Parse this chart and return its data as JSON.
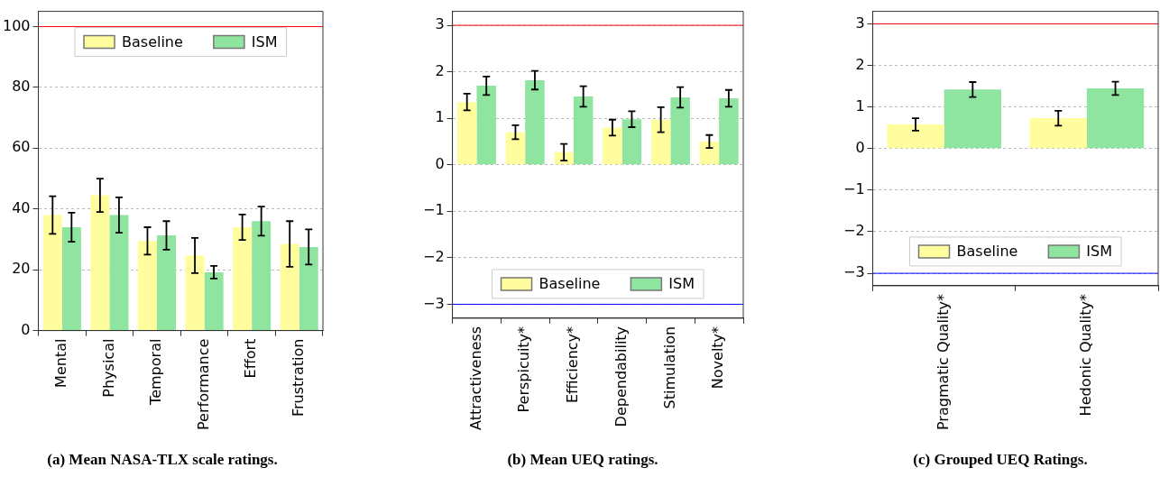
{
  "chart_data": [
    {
      "type": "bar",
      "title": "(a) Mean NASA-TLX scale ratings.",
      "categories": [
        "Mental",
        "Physical",
        "Temporal",
        "Performance",
        "Effort",
        "Frustration"
      ],
      "series": [
        {
          "name": "Baseline",
          "color": "#fffd9e",
          "values": [
            38,
            44.5,
            29.5,
            24.7,
            34,
            28.5
          ],
          "errors": [
            6.2,
            5.5,
            4.5,
            5.8,
            4.2,
            7.5
          ]
        },
        {
          "name": "ISM",
          "color": "#8fe4a0",
          "values": [
            34,
            38,
            31.3,
            19.2,
            36,
            27.5
          ],
          "errors": [
            4.8,
            5.8,
            4.7,
            2.1,
            4.8,
            5.8
          ]
        }
      ],
      "ylim": [
        0,
        105
      ],
      "yticks": [
        0,
        20,
        40,
        60,
        80,
        100
      ],
      "grid": "y",
      "legend": "top",
      "ref_lines": [
        {
          "axis": "y",
          "value": 100,
          "color": "#ff0000"
        }
      ]
    },
    {
      "type": "bar",
      "title": "(b) Mean UEQ ratings.",
      "categories": [
        "Attractiveness",
        "Perspicuity*",
        "Efficiency*",
        "Dependability",
        "Stimulation",
        "Novelty*"
      ],
      "series": [
        {
          "name": "Baseline",
          "color": "#fffd9e",
          "values": [
            1.35,
            0.7,
            0.27,
            0.8,
            0.97,
            0.5
          ],
          "errors": [
            0.18,
            0.15,
            0.18,
            0.17,
            0.27,
            0.14
          ]
        },
        {
          "name": "ISM",
          "color": "#8fe4a0",
          "values": [
            1.7,
            1.82,
            1.47,
            0.98,
            1.45,
            1.43
          ],
          "errors": [
            0.2,
            0.2,
            0.22,
            0.17,
            0.22,
            0.18
          ]
        }
      ],
      "ylim": [
        -3.3,
        3.3
      ],
      "yticks": [
        {
          "value": -3,
          "label": "−3"
        },
        {
          "value": -2,
          "label": "−2"
        },
        {
          "value": -1,
          "label": "−1"
        },
        0,
        1,
        2,
        3
      ],
      "grid": "y",
      "legend": "bottom",
      "ref_lines": [
        {
          "axis": "y",
          "value": 3,
          "color": "#ff0000"
        },
        {
          "axis": "y",
          "value": -3,
          "color": "#0000ff"
        }
      ]
    },
    {
      "type": "bar",
      "title": "(c) Grouped UEQ Ratings.",
      "categories": [
        "Pragmatic Quality*",
        "Hedonic Quality*"
      ],
      "series": [
        {
          "name": "Baseline",
          "color": "#fffd9e",
          "values": [
            0.58,
            0.73
          ],
          "errors": [
            0.15,
            0.18
          ]
        },
        {
          "name": "ISM",
          "color": "#8fe4a0",
          "values": [
            1.42,
            1.45
          ],
          "errors": [
            0.18,
            0.16
          ]
        }
      ],
      "ylim": [
        -3.3,
        3.3
      ],
      "yticks": [
        {
          "value": -3,
          "label": "−3"
        },
        {
          "value": -2,
          "label": "−2"
        },
        {
          "value": -1,
          "label": "−1"
        },
        0,
        1,
        2,
        3
      ],
      "grid": "y",
      "legend": "bottom",
      "ref_lines": [
        {
          "axis": "y",
          "value": 3,
          "color": "#ff0000"
        },
        {
          "axis": "y",
          "value": -3,
          "color": "#0000ff"
        }
      ]
    }
  ]
}
